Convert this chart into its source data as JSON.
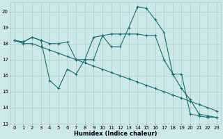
{
  "xlabel": "Humidex (Indice chaleur)",
  "xlim": [
    -0.5,
    23.5
  ],
  "ylim": [
    13,
    20.6
  ],
  "yticks": [
    13,
    14,
    15,
    16,
    17,
    18,
    19,
    20
  ],
  "xticks": [
    0,
    1,
    2,
    3,
    4,
    5,
    6,
    7,
    8,
    9,
    10,
    11,
    12,
    13,
    14,
    15,
    16,
    17,
    18,
    19,
    20,
    21,
    22,
    23
  ],
  "bg_color": "#cce8e8",
  "grid_color": "#aacccc",
  "line_color": "#1a6b6b",
  "series": [
    [
      18.2,
      18.1,
      18.4,
      18.2,
      15.7,
      15.2,
      16.4,
      16.1,
      17.0,
      18.4,
      18.5,
      17.8,
      17.8,
      19.0,
      20.3,
      20.2,
      19.5,
      18.7,
      16.1,
      16.1,
      13.6,
      13.5,
      13.4,
      13.4
    ],
    [
      18.2,
      18.1,
      18.4,
      18.2,
      18.0,
      18.0,
      18.1,
      17.0,
      17.0,
      17.0,
      18.5,
      18.6,
      18.6,
      18.6,
      18.6,
      18.5,
      18.5,
      17.0,
      16.1,
      15.2,
      14.5,
      13.6,
      13.5,
      13.4
    ],
    [
      18.2,
      18.0,
      18.0,
      17.8,
      17.6,
      17.4,
      17.2,
      17.0,
      16.8,
      16.6,
      16.4,
      16.2,
      16.0,
      15.8,
      15.6,
      15.4,
      15.2,
      15.0,
      14.8,
      14.6,
      14.4,
      14.2,
      14.0,
      13.8
    ]
  ]
}
